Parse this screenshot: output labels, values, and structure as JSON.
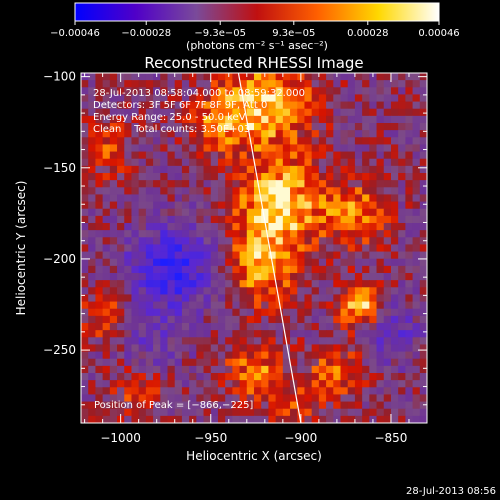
{
  "chart_data": {
    "type": "heatmap",
    "title": "Reconstructed RHESSI Image",
    "xlabel": "Heliocentric X (arcsec)",
    "ylabel": "Heliocentric Y (arcsec)",
    "xlim": [
      -1022,
      -830
    ],
    "ylim": [
      -290,
      -98
    ],
    "x_ticks": [
      -1000,
      -950,
      -900,
      -850
    ],
    "x_tick_labels": [
      "−1000",
      "−950",
      "−900",
      "−850"
    ],
    "y_ticks": [
      -100,
      -150,
      -200,
      -250
    ],
    "y_tick_labels": [
      "−100",
      "−150",
      "−200",
      "−250"
    ],
    "colorbar": {
      "ticks": [
        -0.00046,
        -0.00028,
        -9.3e-05,
        9.3e-05,
        0.00028,
        0.00046
      ],
      "tick_labels": [
        "−0.00046",
        "−0.00028",
        "−9.3e−05",
        "9.3e−05",
        "0.00028",
        "0.00046"
      ],
      "units_label": "(photons cm⁻² s⁻¹ asec⁻²)",
      "range": [
        -0.00046,
        0.00046
      ],
      "colors": [
        "#0000ff",
        "#5000c8",
        "#7a4a9a",
        "#c01010",
        "#ff6000",
        "#ffd800",
        "#ffffff"
      ]
    },
    "limb_line": [
      [
        -935,
        -96
      ],
      [
        -900,
        -290
      ]
    ],
    "peak": [
      -866,
      -225
    ],
    "grid": false
  },
  "annotations": {
    "line1": "28-Jul-2013 08:58:04.000 to 08:59:32.000",
    "line2": "Detectors: 3F 5F 6F 7F 8F 9F, Att 0",
    "line3": "Energy Range: 25.0 - 50.0 keV",
    "line4": "Clean    Total counts: 3.50E+03",
    "peak_text": "Position of Peak = [−866,−225]"
  },
  "footer": {
    "timestamp": "28-Jul-2013 08:56"
  }
}
